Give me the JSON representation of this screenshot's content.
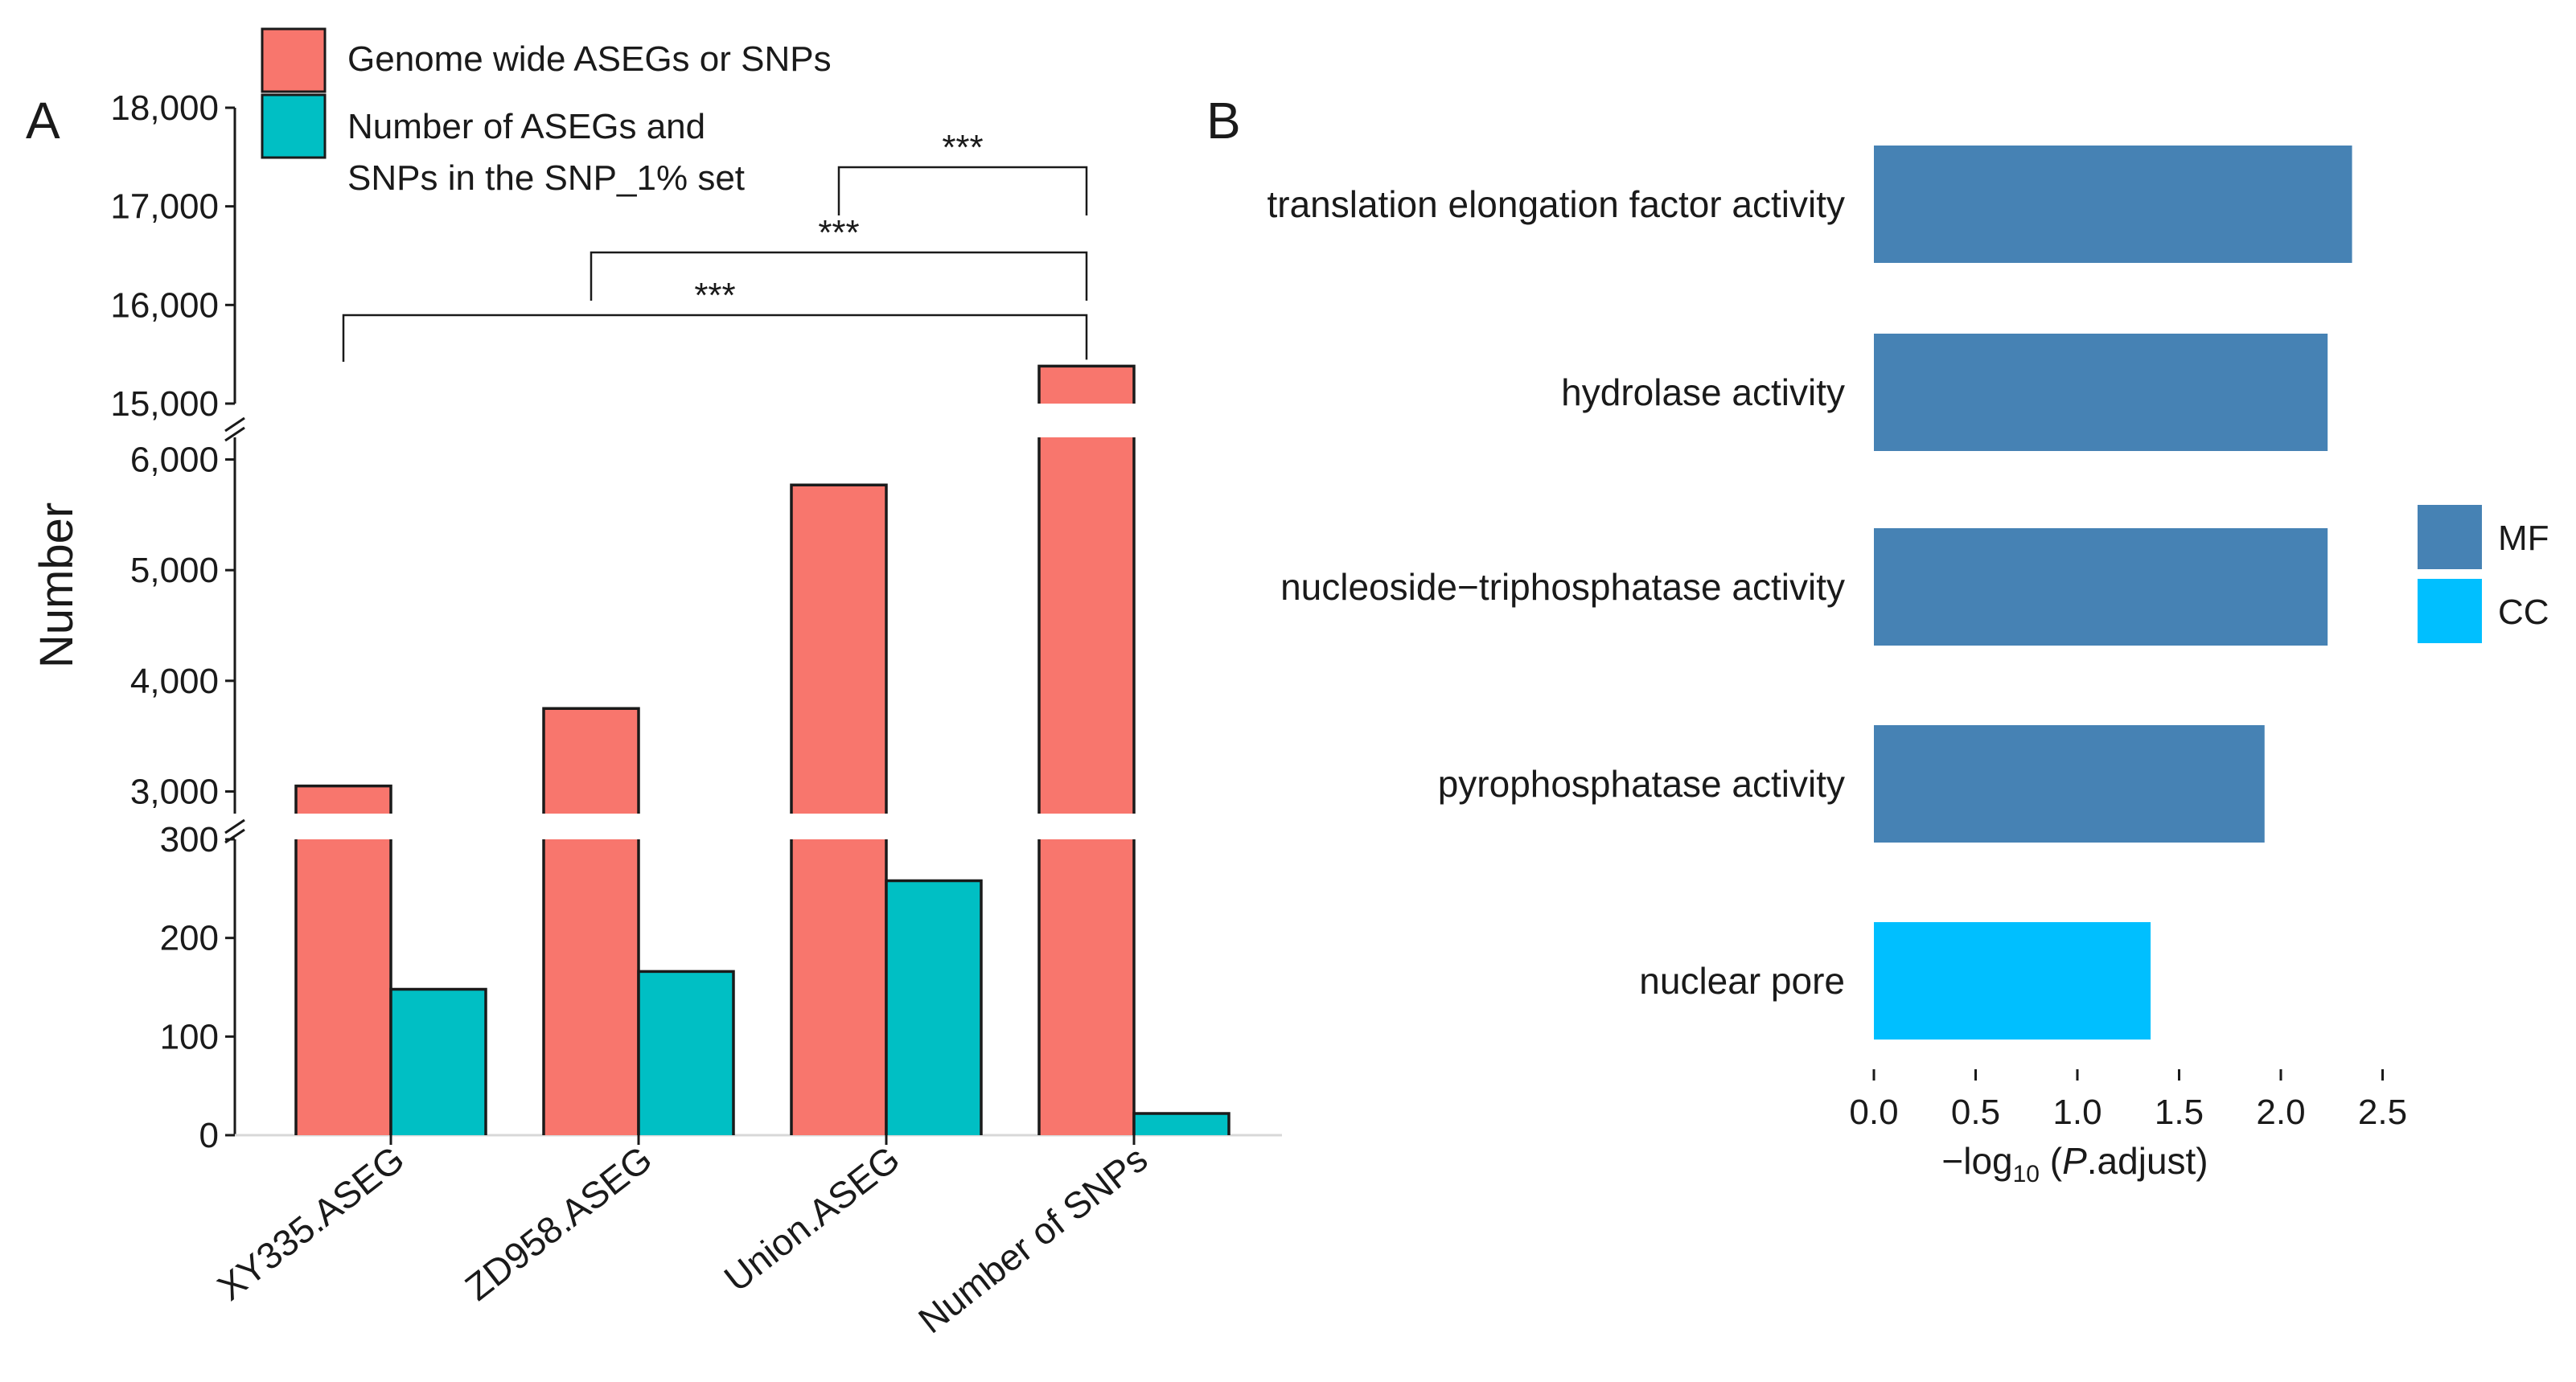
{
  "panels": {
    "left_letter": "A",
    "right_letter": "B"
  },
  "colors": {
    "genome": "#F8766D",
    "snp_set": "#00BFC4",
    "MF": "#4682B4",
    "CC": "#00BFFF"
  },
  "chart_data": [
    {
      "type": "bar",
      "panel": "A",
      "ylabel": "Number",
      "axis_break": true,
      "y_segments": [
        {
          "range": [
            0,
            300
          ],
          "ticks": [
            0,
            100,
            200,
            300
          ],
          "tick_labels": [
            "0",
            "100",
            "200",
            "300"
          ]
        },
        {
          "range": [
            2800,
            6200
          ],
          "ticks": [
            3000,
            4000,
            5000,
            6000
          ],
          "tick_labels": [
            "3,000",
            "4,000",
            "5,000",
            "6,000"
          ]
        },
        {
          "range": [
            15000,
            18000
          ],
          "ticks": [
            15000,
            16000,
            17000,
            18000
          ],
          "tick_labels": [
            "15,000",
            "16,000",
            "17,000",
            "18,000"
          ]
        }
      ],
      "categories": [
        "XY335.ASEG",
        "ZD958.ASEG",
        "Union.ASEG",
        "Number of SNPs"
      ],
      "series": [
        {
          "name": "Genome wide ASEGs or SNPs",
          "values": [
            3050,
            3750,
            5770,
            15380
          ]
        },
        {
          "name": "Number of ASEGs and SNPs in the SNP_1% set",
          "values": [
            148,
            166,
            258,
            22
          ]
        }
      ],
      "legend": {
        "position": "top-left",
        "entries": [
          {
            "lines": [
              "Genome wide ASEGs or SNPs"
            ]
          },
          {
            "lines": [
              "Number of ASEGs and",
              "SNPs in the SNP_1% set"
            ]
          }
        ]
      },
      "significance": [
        {
          "from": "XY335.ASEG",
          "to": "Number of SNPs",
          "label": "***"
        },
        {
          "from": "ZD958.ASEG",
          "to": "Number of SNPs",
          "label": "***"
        },
        {
          "from": "Union.ASEG",
          "to": "Number of SNPs",
          "label": "***"
        }
      ]
    },
    {
      "type": "bar",
      "orientation": "horizontal",
      "panel": "B",
      "xlabel_prefix": "−log",
      "xlabel_sub": "10",
      "xlabel_paren_open": " (",
      "xlabel_italic": "P",
      "xlabel_rest": ".adjust)",
      "xlim": [
        0,
        2.5
      ],
      "ticks": [
        0,
        0.5,
        1,
        1.5,
        2,
        2.5
      ],
      "tick_labels": [
        "0.0",
        "0.5",
        "1.0",
        "1.5",
        "2.0",
        "2.5"
      ],
      "categories": [
        "translation elongation factor activity",
        "hydrolase activity",
        "nucleoside−triphosphatase activity",
        "pyrophosphatase activity",
        "nuclear pore"
      ],
      "values": [
        2.35,
        2.23,
        2.23,
        1.92,
        1.36
      ],
      "groups": [
        "MF",
        "MF",
        "MF",
        "MF",
        "CC"
      ],
      "legend": {
        "position": "right",
        "entries": [
          "MF",
          "CC"
        ]
      }
    }
  ]
}
